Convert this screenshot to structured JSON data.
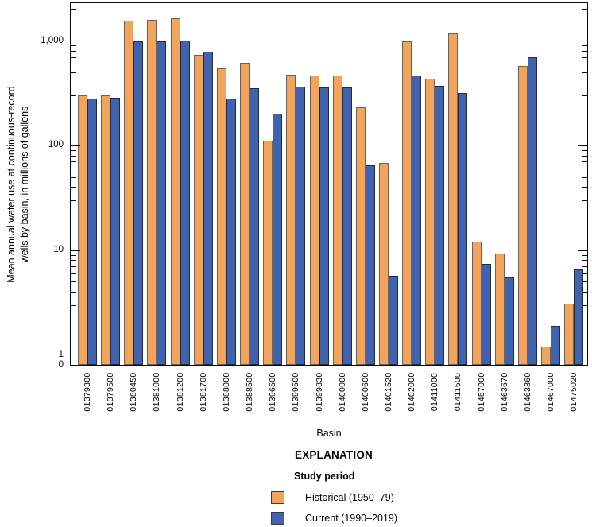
{
  "figure": {
    "y_axis": {
      "title_line1": "Mean annual water use at continuous-record",
      "title_line2": "wells by basin, in millions of gallons",
      "major_tick_labels": [
        "1,000",
        "100",
        "10",
        "1"
      ],
      "zero_label": "0"
    },
    "x_axis": {
      "title": "Basin"
    },
    "legend": {
      "title": "EXPLANATION",
      "subtitle": "Study period",
      "items": [
        {
          "label": "Historical (1950–79)",
          "color": "#F2A45C"
        },
        {
          "label": "Current (1990–2019)",
          "color": "#3F63AE"
        }
      ]
    }
  },
  "chart_data": {
    "type": "bar",
    "title": "",
    "xlabel": "Basin",
    "ylabel": "Mean annual water use at continuous-record wells by basin, in millions of gallons",
    "y_scale": "log",
    "ylim": [
      1,
      2300
    ],
    "y_major_ticks": [
      1,
      10,
      100,
      1000
    ],
    "grid": false,
    "legend_position": "bottom",
    "categories": [
      "01379300",
      "01379500",
      "01380450",
      "01381000",
      "01381200",
      "01381700",
      "01388000",
      "01388500",
      "01396500",
      "01399500",
      "01399830",
      "01400000",
      "01400600",
      "01401520",
      "01402000",
      "01411000",
      "01411500",
      "01457000",
      "01463670",
      "01463860",
      "01467000",
      "01475020"
    ],
    "series": [
      {
        "name": "Historical (1950–79)",
        "color": "#F2A45C",
        "values": [
          300,
          300,
          1560,
          1580,
          1630,
          730,
          540,
          610,
          110,
          470,
          465,
          465,
          230,
          68,
          990,
          430,
          1170,
          12,
          9.3,
          570,
          1.2,
          3.1
        ]
      },
      {
        "name": "Current (1990–2019)",
        "color": "#3F63AE",
        "values": [
          280,
          285,
          990,
          990,
          1000,
          790,
          280,
          350,
          200,
          365,
          360,
          360,
          64,
          5.7,
          465,
          370,
          315,
          7.4,
          5.5,
          690,
          1.9,
          6.5
        ]
      }
    ]
  }
}
